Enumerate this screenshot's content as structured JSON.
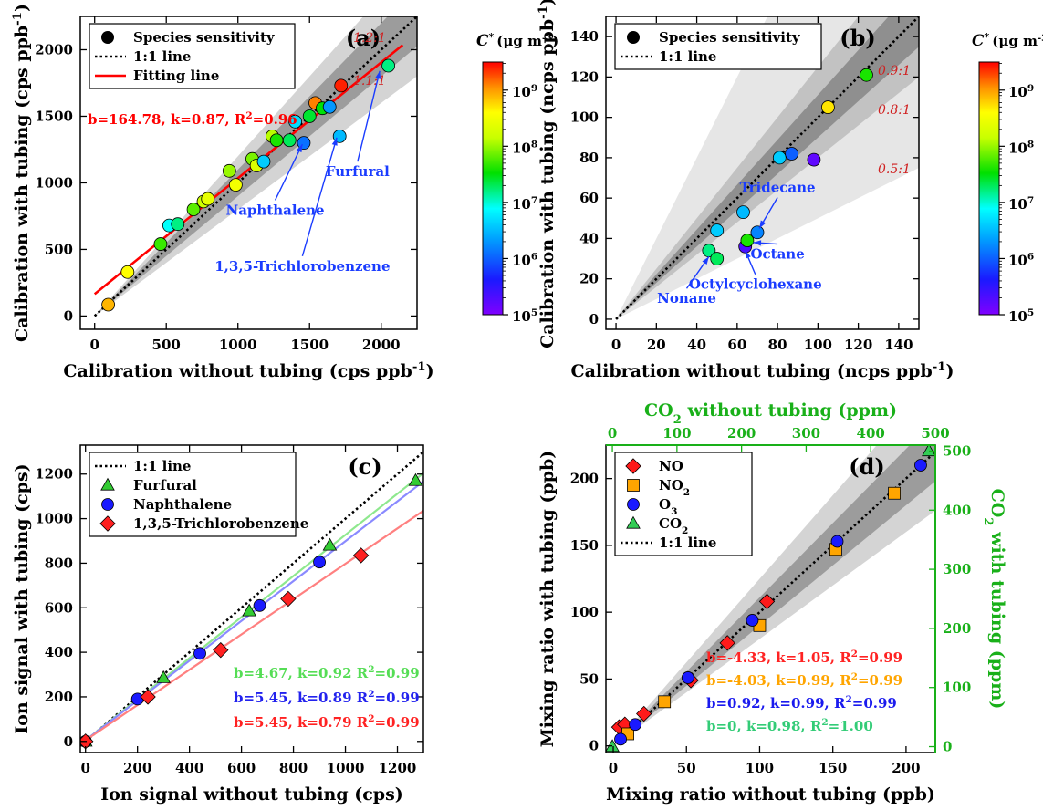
{
  "chart_data": [
    {
      "panel": "(a)",
      "type": "scatter",
      "xlabel": "Calibration without tubing (cps ppb⁻¹)",
      "ylabel": "Calibration with tubing (cps ppb⁻¹)",
      "xlim": [
        -100,
        2250
      ],
      "ylim": [
        -100,
        2250
      ],
      "xticks": [
        0,
        500,
        1000,
        1500,
        2000
      ],
      "yticks": [
        0,
        500,
        1000,
        1500,
        2000
      ],
      "legend_position": "top-left",
      "legend": [
        "Species sensitivity",
        "1:1 line",
        "Fitting line"
      ],
      "bands": [
        {
          "label": "1.2:1",
          "lower_slope": 0.8,
          "upper_slope": 1.2,
          "shade": "#d4d4d4"
        },
        {
          "label": "1.1:1",
          "lower_slope": 0.9,
          "upper_slope": 1.1,
          "shade": "#9c9c9c"
        }
      ],
      "one_to_one": true,
      "fit": {
        "b": 164.78,
        "k": 0.87,
        "color": "#ff0000",
        "x_range": [
          0,
          2150
        ]
      },
      "fit_text": "b=164.78, k=0.87, R²=0.96",
      "points": [
        {
          "x": 95,
          "y": 85,
          "logc": 8.9
        },
        {
          "x": 230,
          "y": 330,
          "logc": 8.6
        },
        {
          "x": 460,
          "y": 540,
          "logc": 7.7
        },
        {
          "x": 520,
          "y": 680,
          "logc": 6.9
        },
        {
          "x": 580,
          "y": 690,
          "logc": 7.2
        },
        {
          "x": 690,
          "y": 800,
          "logc": 7.8
        },
        {
          "x": 760,
          "y": 860,
          "logc": 8.2
        },
        {
          "x": 790,
          "y": 880,
          "logc": 8.4
        },
        {
          "x": 940,
          "y": 1090,
          "logc": 8.0
        },
        {
          "x": 985,
          "y": 985,
          "logc": 8.5
        },
        {
          "x": 1100,
          "y": 1180,
          "logc": 7.9
        },
        {
          "x": 1130,
          "y": 1130,
          "logc": 8.3
        },
        {
          "x": 1180,
          "y": 1160,
          "logc": 6.6
        },
        {
          "x": 1240,
          "y": 1350,
          "logc": 8.1
        },
        {
          "x": 1270,
          "y": 1320,
          "logc": 7.6
        },
        {
          "x": 1360,
          "y": 1320,
          "logc": 7.3
        },
        {
          "x": 1400,
          "y": 1460,
          "logc": 6.7
        },
        {
          "x": 1460,
          "y": 1300,
          "logc": 6.1
        },
        {
          "x": 1500,
          "y": 1500,
          "logc": 7.4
        },
        {
          "x": 1540,
          "y": 1600,
          "logc": 9.1
        },
        {
          "x": 1590,
          "y": 1560,
          "logc": 7.5
        },
        {
          "x": 1640,
          "y": 1570,
          "logc": 6.3
        },
        {
          "x": 1710,
          "y": 1350,
          "logc": 6.5
        },
        {
          "x": 1720,
          "y": 1730,
          "logc": 9.4
        },
        {
          "x": 2050,
          "y": 1880,
          "logc": 7.2
        }
      ],
      "annotations": [
        {
          "text": "Naphthalene",
          "x": 1260,
          "y": 760,
          "arrow_to": [
            1450,
            1290
          ]
        },
        {
          "text": "1,3,5-Trichlorobenzene",
          "x": 1450,
          "y": 340,
          "arrow_to": [
            1690,
            1340
          ]
        },
        {
          "text": "Furfural",
          "x": 1835,
          "y": 1050,
          "arrow_to": [
            1990,
            1840
          ]
        }
      ],
      "colorbar": {
        "title_symbol": "C*",
        "title_unit": "(μg m⁻³)",
        "log_range": [
          5,
          9.5
        ],
        "tick_labels": [
          "10⁵",
          "10⁶",
          "10⁷",
          "10⁸",
          "10⁹"
        ]
      }
    },
    {
      "panel": "(b)",
      "type": "scatter",
      "xlabel": "Calibration without tubing (ncps ppb⁻¹)",
      "ylabel": "Calibration with tubing (ncps ppb⁻¹)",
      "xlim": [
        -5,
        150
      ],
      "ylim": [
        -5,
        150
      ],
      "xticks": [
        0,
        20,
        40,
        60,
        80,
        100,
        120,
        140
      ],
      "yticks": [
        0,
        20,
        40,
        60,
        80,
        100,
        120,
        140
      ],
      "legend_position": "top-left",
      "legend": [
        "Species sensitivity",
        "1:1 line"
      ],
      "bands": [
        {
          "label": "0.5:1",
          "lower_slope": 0.5,
          "upper_slope": 2.0,
          "shade": "#e6e6e6"
        },
        {
          "label": "0.8:1",
          "lower_slope": 0.8,
          "upper_slope": 1.25,
          "shade": "#c2c2c2"
        },
        {
          "label": "0.9:1",
          "lower_slope": 0.9,
          "upper_slope": 1.111,
          "shade": "#8f8f8f"
        }
      ],
      "one_to_one": true,
      "points": [
        {
          "x": 46,
          "y": 34,
          "logc": 7.2
        },
        {
          "x": 50,
          "y": 44,
          "logc": 6.6
        },
        {
          "x": 50,
          "y": 30,
          "logc": 7.3
        },
        {
          "x": 63,
          "y": 53,
          "logc": 6.5
        },
        {
          "x": 64,
          "y": 36,
          "logc": 5.3
        },
        {
          "x": 65,
          "y": 39,
          "logc": 7.6
        },
        {
          "x": 70,
          "y": 43,
          "logc": 6.2
        },
        {
          "x": 81,
          "y": 80,
          "logc": 6.6
        },
        {
          "x": 87,
          "y": 82,
          "logc": 6.0
        },
        {
          "x": 98,
          "y": 79,
          "logc": 5.2
        },
        {
          "x": 105,
          "y": 105,
          "logc": 8.7
        },
        {
          "x": 124,
          "y": 121,
          "logc": 7.6
        }
      ],
      "annotations": [
        {
          "text": "Tridecane",
          "x": 80,
          "y": 63,
          "arrow_to": [
            71,
            45
          ]
        },
        {
          "text": "Octane",
          "x": 80,
          "y": 30,
          "arrow_to": [
            68,
            38
          ]
        },
        {
          "text": "Octylcyclohexane",
          "x": 69,
          "y": 15,
          "arrow_to": [
            64,
            34
          ]
        },
        {
          "text": "Nonane",
          "x": 35,
          "y": 8,
          "arrow_to": [
            46,
            31
          ]
        }
      ],
      "colorbar": {
        "title_symbol": "C*",
        "title_unit": "(μg m⁻³)",
        "log_range": [
          5,
          9.5
        ],
        "tick_labels": [
          "10⁵",
          "10⁶",
          "10⁷",
          "10⁸",
          "10⁹"
        ]
      }
    },
    {
      "panel": "(c)",
      "type": "scatter",
      "xlabel": "Ion signal without tubing (cps)",
      "ylabel": "Ion signal with tubing (cps)",
      "xlim": [
        -20,
        1300
      ],
      "ylim": [
        -50,
        1330
      ],
      "xticks": [
        0,
        200,
        400,
        600,
        800,
        1000,
        1200
      ],
      "yticks": [
        0,
        200,
        400,
        600,
        800,
        1000,
        1200
      ],
      "legend_position": "top-left",
      "legend": [
        "1:1 line",
        "Furfural",
        "Naphthalene",
        "1,3,5-Trichlorobenzene"
      ],
      "one_to_one": true,
      "series": [
        {
          "name": "Furfural",
          "marker": "triangle",
          "color": "#33cc33",
          "line_color": "#8ee88e",
          "x": [
            0,
            300,
            630,
            940,
            1270
          ],
          "y": [
            0,
            285,
            585,
            880,
            1170
          ]
        },
        {
          "name": "Naphthalene",
          "marker": "circle",
          "color": "#1a1aff",
          "line_color": "#8a8aff",
          "x": [
            0,
            200,
            440,
            670,
            900
          ],
          "y": [
            0,
            190,
            395,
            610,
            805
          ]
        },
        {
          "name": "1,3,5-Trichlorobenzene",
          "marker": "diamond",
          "color": "#ff2020",
          "line_color": "#ff8080",
          "x": [
            0,
            240,
            520,
            780,
            1060
          ],
          "y": [
            0,
            200,
            410,
            640,
            835
          ]
        }
      ],
      "fits": [
        {
          "series": "Furfural",
          "b": 4.67,
          "k": 0.92,
          "text": "b=4.67, k=0.92 R²=0.99",
          "color": "#55dd55"
        },
        {
          "series": "Naphthalene",
          "b": 5.45,
          "k": 0.89,
          "text": "b=5.45, k=0.89 R²=0.99",
          "color": "#2222ee"
        },
        {
          "series": "1,3,5-Trichlorobenzene",
          "b": 5.45,
          "k": 0.79,
          "text": "b=5.45, k=0.79 R²=0.99",
          "color": "#ff2222"
        }
      ]
    },
    {
      "panel": "(d)",
      "type": "scatter",
      "xlabel": "Mixing ratio without tubing (ppb)",
      "ylabel": "Mixing ratio with tubing (ppb)",
      "x2label": "CO₂ without tubing (ppm)",
      "y2label": "CO₂ with tubing (ppm)",
      "xlim": [
        -5,
        220
      ],
      "ylim": [
        -5,
        225
      ],
      "xticks": [
        0,
        50,
        100,
        150,
        200
      ],
      "yticks": [
        0,
        50,
        100,
        150,
        200
      ],
      "x2lim": [
        -10,
        500
      ],
      "y2lim": [
        -10,
        510
      ],
      "x2ticks": [
        0,
        100,
        200,
        300,
        400,
        500
      ],
      "y2ticks": [
        0,
        100,
        200,
        300,
        400,
        500
      ],
      "legend_position": "top-left",
      "legend": [
        "NO",
        "NO₂",
        "O₃",
        "CO₂",
        "1:1 line"
      ],
      "bands": [
        {
          "lower_slope": 0.8,
          "upper_slope": 1.25,
          "shade": "#d4d4d4"
        },
        {
          "lower_slope": 0.9,
          "upper_slope": 1.111,
          "shade": "#9c9c9c"
        }
      ],
      "one_to_one": true,
      "series": [
        {
          "name": "NO",
          "marker": "diamond",
          "color": "#ff1a1a",
          "x": [
            4,
            8,
            21,
            53,
            78,
            105
          ],
          "y": [
            14,
            16,
            24,
            49,
            77,
            108
          ]
        },
        {
          "name": "NO₂",
          "marker": "square",
          "color": "#ffa500",
          "x": [
            10,
            35,
            100,
            152,
            192
          ],
          "y": [
            9,
            33,
            90,
            147,
            189
          ]
        },
        {
          "name": "O₃",
          "marker": "circle",
          "color": "#1a1aff",
          "x": [
            5,
            15,
            51,
            95,
            153,
            210
          ],
          "y": [
            5,
            16,
            51,
            94,
            153,
            210
          ]
        },
        {
          "name": "CO₂",
          "marker": "triangle",
          "color": "#33cc55",
          "axes": "secondary",
          "x": [
            0,
            490
          ],
          "y": [
            0,
            500
          ]
        }
      ],
      "fits": [
        {
          "series": "NO",
          "text": "b=-4.33, k=1.05, R²=0.99",
          "color": "#ff2222"
        },
        {
          "series": "NO₂",
          "text": "b=-4.03, k=0.99, R²=0.99",
          "color": "#ffa500"
        },
        {
          "series": "O₃",
          "text": "b=0.92, k=0.99,   R²=0.99",
          "color": "#1a1aee"
        },
        {
          "series": "CO₂",
          "text": "b=0, k=0.98, R²=1.00",
          "color": "#33cc77"
        }
      ]
    }
  ]
}
